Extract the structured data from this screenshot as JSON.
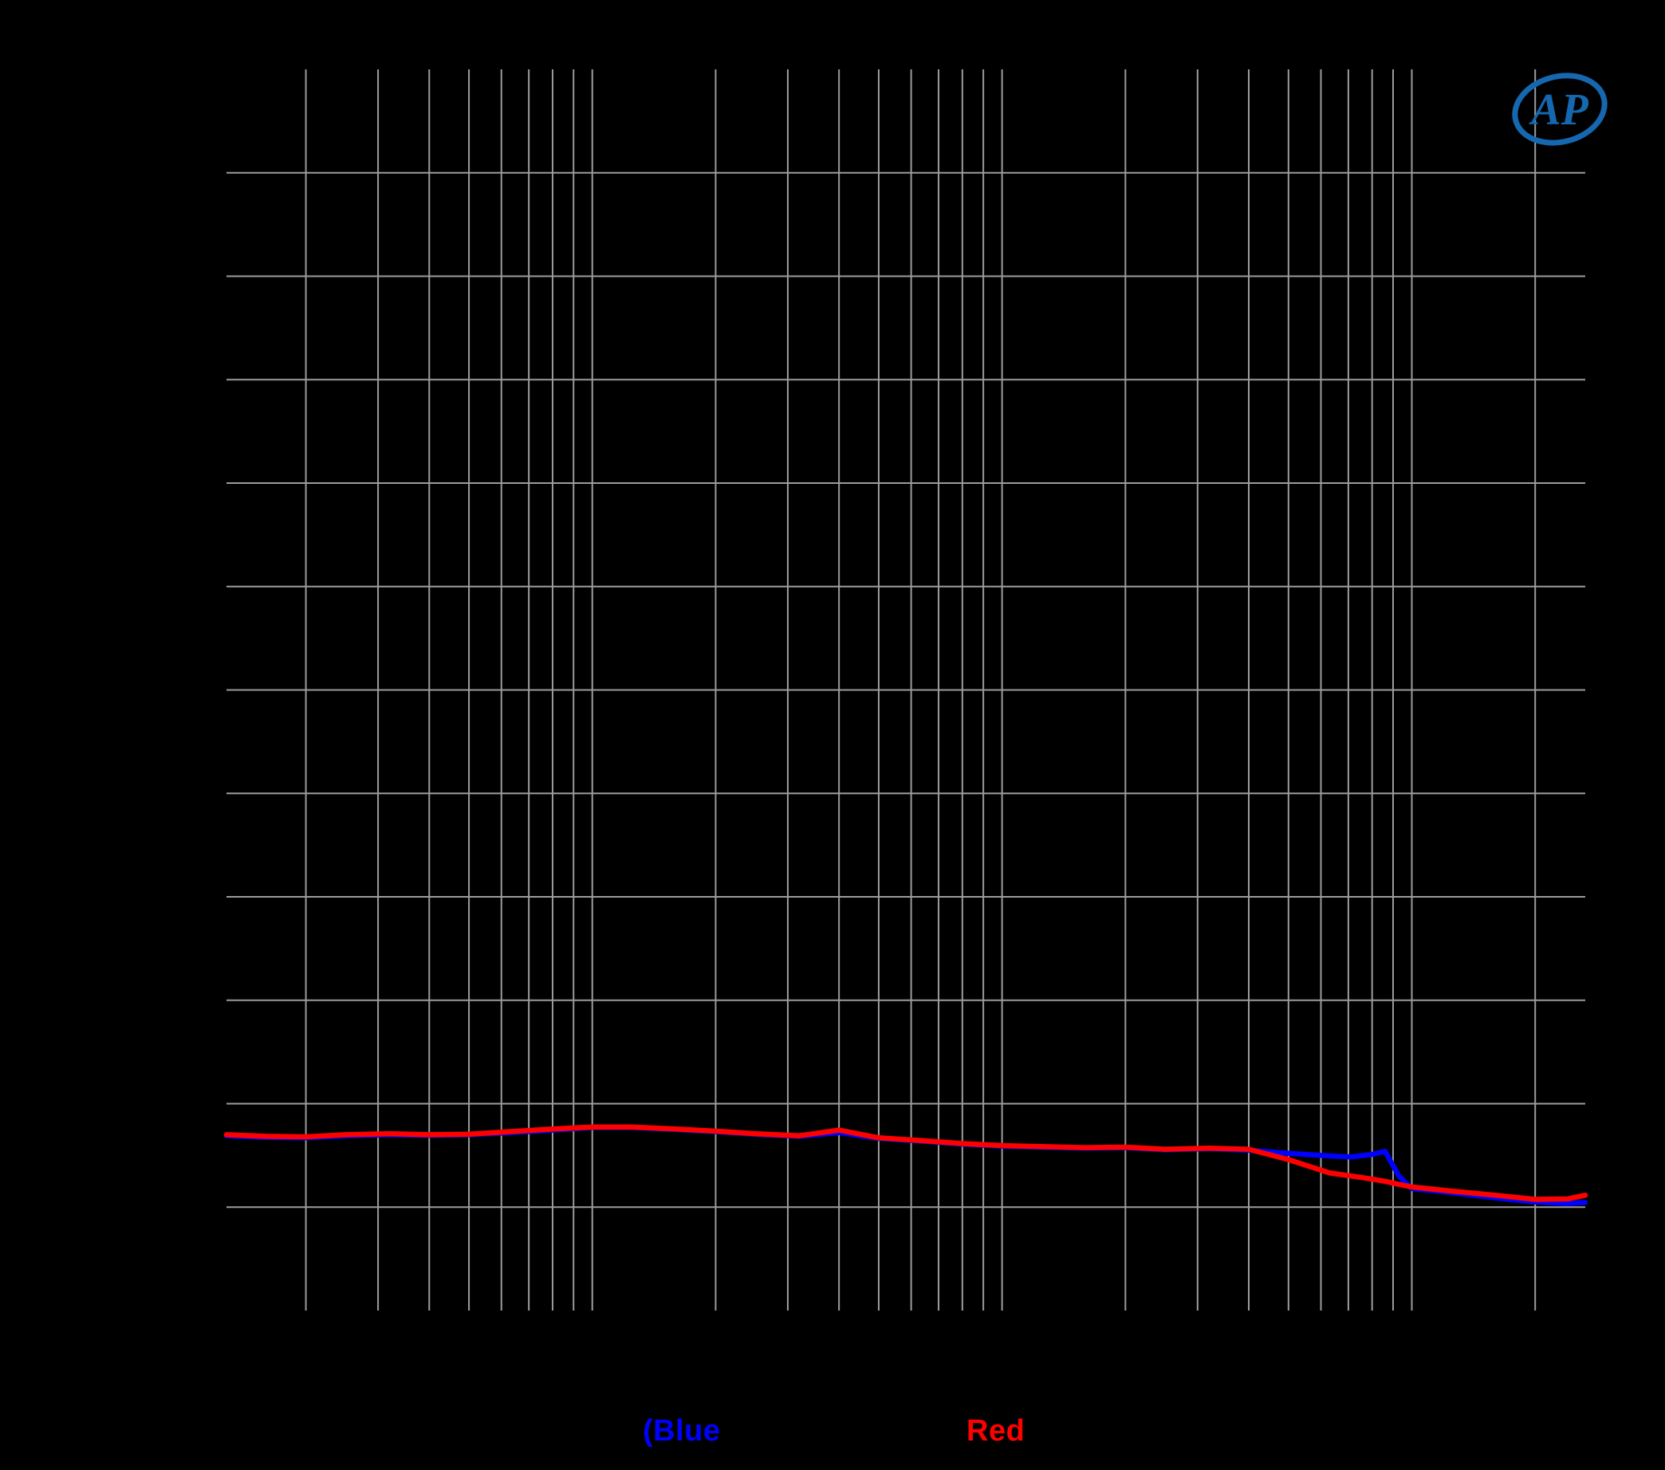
{
  "page": {
    "background_color": "#000000"
  },
  "logo": {
    "name": "Audio Precision",
    "text": "AP",
    "color": "#1568b0"
  },
  "caption": {
    "blue_label": "(Blue",
    "red_label": "Red",
    "blue_color": "#0000ff",
    "red_color": "#ff0000"
  },
  "chart_data": {
    "type": "line",
    "title": "",
    "x_axis": {
      "scale": "log",
      "unit": "Hz",
      "min": 12.8,
      "max": 26500,
      "gridlines": [
        20,
        30,
        40,
        50,
        60,
        70,
        80,
        90,
        100,
        200,
        300,
        400,
        500,
        600,
        700,
        800,
        900,
        1000,
        2000,
        3000,
        4000,
        5000,
        6000,
        7000,
        8000,
        9000,
        10000,
        20000
      ],
      "tick_labels_visible": false
    },
    "y_axis": {
      "unit": "dB",
      "min": -110,
      "max": 10,
      "step": 10,
      "gridlines": [
        0,
        -10,
        -20,
        -30,
        -40,
        -50,
        -60,
        -70,
        -80,
        -90,
        -100
      ],
      "tick_labels_visible": false
    },
    "grid_color": "#9c9c9c",
    "legend_position": "none",
    "series": [
      {
        "name": "Blue",
        "color": "#0000ff",
        "points": [
          [
            12.8,
            -93.1
          ],
          [
            16,
            -93.25
          ],
          [
            20,
            -93.3
          ],
          [
            25,
            -93.1
          ],
          [
            32,
            -93.0
          ],
          [
            40,
            -93.05
          ],
          [
            50,
            -93.0
          ],
          [
            63,
            -92.8
          ],
          [
            80,
            -92.55
          ],
          [
            100,
            -92.3
          ],
          [
            125,
            -92.3
          ],
          [
            160,
            -92.5
          ],
          [
            200,
            -92.7
          ],
          [
            250,
            -92.95
          ],
          [
            320,
            -93.15
          ],
          [
            400,
            -92.8
          ],
          [
            500,
            -93.35
          ],
          [
            630,
            -93.6
          ],
          [
            800,
            -93.9
          ],
          [
            1000,
            -94.1
          ],
          [
            1250,
            -94.2
          ],
          [
            1600,
            -94.3
          ],
          [
            2000,
            -94.25
          ],
          [
            2500,
            -94.45
          ],
          [
            3200,
            -94.35
          ],
          [
            4000,
            -94.5
          ],
          [
            5000,
            -94.8
          ],
          [
            6300,
            -95.05
          ],
          [
            7100,
            -95.15
          ],
          [
            8000,
            -94.9
          ],
          [
            8600,
            -94.6
          ],
          [
            9300,
            -97.0
          ],
          [
            10000,
            -98.2
          ],
          [
            12500,
            -98.6
          ],
          [
            16000,
            -99.1
          ],
          [
            20000,
            -99.5
          ],
          [
            24000,
            -99.65
          ],
          [
            26500,
            -99.55
          ]
        ]
      },
      {
        "name": "Red",
        "color": "#ff0000",
        "points": [
          [
            12.8,
            -93.0
          ],
          [
            16,
            -93.15
          ],
          [
            20,
            -93.2
          ],
          [
            25,
            -93.0
          ],
          [
            32,
            -92.9
          ],
          [
            40,
            -93.0
          ],
          [
            50,
            -92.95
          ],
          [
            63,
            -92.7
          ],
          [
            80,
            -92.45
          ],
          [
            100,
            -92.25
          ],
          [
            125,
            -92.25
          ],
          [
            160,
            -92.45
          ],
          [
            200,
            -92.65
          ],
          [
            250,
            -92.9
          ],
          [
            320,
            -93.1
          ],
          [
            400,
            -92.55
          ],
          [
            500,
            -93.3
          ],
          [
            630,
            -93.55
          ],
          [
            800,
            -93.85
          ],
          [
            1000,
            -94.05
          ],
          [
            1250,
            -94.15
          ],
          [
            1600,
            -94.25
          ],
          [
            2000,
            -94.2
          ],
          [
            2500,
            -94.4
          ],
          [
            3200,
            -94.3
          ],
          [
            4000,
            -94.4
          ],
          [
            5000,
            -95.4
          ],
          [
            6300,
            -96.7
          ],
          [
            7600,
            -97.15
          ],
          [
            8600,
            -97.5
          ],
          [
            9300,
            -97.8
          ],
          [
            10000,
            -98.05
          ],
          [
            12500,
            -98.45
          ],
          [
            16000,
            -98.85
          ],
          [
            20000,
            -99.25
          ],
          [
            24000,
            -99.2
          ],
          [
            26500,
            -98.85
          ]
        ]
      }
    ]
  }
}
